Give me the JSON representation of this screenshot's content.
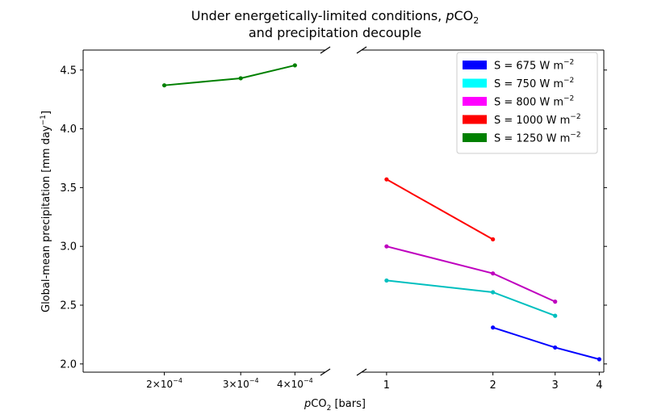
{
  "chart_data": {
    "type": "line",
    "title": {
      "line1_prefix": "Under energetically-limited conditions, ",
      "line1_italic": "p",
      "line1_co": "CO",
      "line1_sub": "2",
      "line2": "and precipitation decouple"
    },
    "xlabel": {
      "italic": "p",
      "co": "CO",
      "sub": "2",
      "rest": " [bars]"
    },
    "ylabel": "Global-mean precipitation [mm day",
    "ylabel_exp": "−1",
    "ylabel_end": "]",
    "ylim": [
      1.93,
      4.67
    ],
    "yticks": [
      "2.0",
      "2.5",
      "3.0",
      "3.5",
      "4.0",
      "4.5"
    ],
    "x_scale": "log",
    "left_panel": {
      "xlim": [
        0.00013,
        0.00047
      ],
      "xticks": [
        {
          "value": 0.0002,
          "mant": "2",
          "exp": "−4"
        },
        {
          "value": 0.0003,
          "mant": "3",
          "exp": "−4"
        },
        {
          "value": 0.0004,
          "mant": "4",
          "exp": "−4"
        }
      ]
    },
    "right_panel": {
      "xlim": [
        0.85,
        4.12
      ],
      "xticks": [
        {
          "value": 1,
          "label": "1"
        },
        {
          "value": 2,
          "label": "2"
        },
        {
          "value": 3,
          "label": "3"
        },
        {
          "value": 4,
          "label": "4"
        }
      ]
    },
    "series": [
      {
        "name": "S = 675 W m",
        "exp": "−2",
        "color": "#0000ff",
        "points": [
          [
            2,
            2.31
          ],
          [
            3,
            2.14
          ],
          [
            4,
            2.04
          ]
        ]
      },
      {
        "name": "S = 750 W m",
        "exp": "−2",
        "color": "#00bfbf",
        "points": [
          [
            1,
            2.71
          ],
          [
            2,
            2.61
          ],
          [
            3,
            2.41
          ]
        ]
      },
      {
        "name": "S = 800 W m",
        "exp": "−2",
        "color": "#bf00bf",
        "points": [
          [
            1,
            3.0
          ],
          [
            2,
            2.77
          ],
          [
            3,
            2.53
          ]
        ]
      },
      {
        "name": "S = 1000 W m",
        "exp": "−2",
        "color": "#ff0000",
        "points": [
          [
            1,
            3.57
          ],
          [
            2,
            3.06
          ]
        ]
      },
      {
        "name": "S = 1250 W m",
        "exp": "−2",
        "color": "#008000",
        "points": [
          [
            0.0002,
            4.37
          ],
          [
            0.0003,
            4.43
          ],
          [
            0.0004,
            4.54
          ]
        ]
      }
    ],
    "legend": {
      "placement": "upper-right",
      "swatch_colors": [
        "#0000ff",
        "#00ffff",
        "#ff00ff",
        "#ff0000",
        "#008000"
      ]
    }
  }
}
